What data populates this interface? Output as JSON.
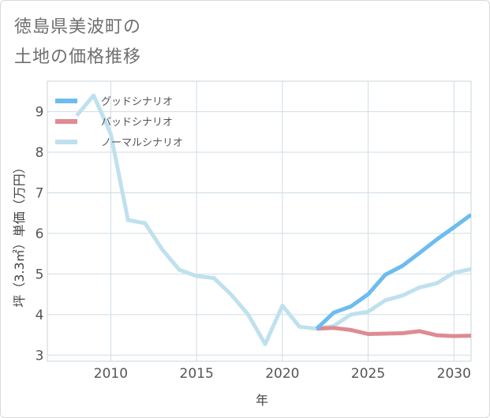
{
  "header": {
    "title_line1": "徳島県美波町の",
    "title_line2": "土地の価格推移"
  },
  "chart_data": {
    "type": "line",
    "title": "徳島県美波町の土地の価格推移",
    "xlabel": "年",
    "ylabel": "坪（3.3㎡）単価（万円）",
    "xlim": [
      2006.3,
      2031
    ],
    "ylim": [
      2.85,
      9.75
    ],
    "xticks": [
      2010,
      2015,
      2020,
      2025,
      2030
    ],
    "yticks": [
      3,
      4,
      5,
      6,
      7,
      8,
      9
    ],
    "legend_position": "top-left",
    "series": [
      {
        "name": "グッドシナリオ",
        "color": "#6cbcef",
        "x": [
          2022,
          2023,
          2024,
          2025,
          2026,
          2027,
          2028,
          2029,
          2030,
          2031
        ],
        "y": [
          3.65,
          4.05,
          4.2,
          4.5,
          4.98,
          5.2,
          5.52,
          5.85,
          6.15,
          6.46
        ]
      },
      {
        "name": "バッドシナリオ",
        "color": "#df8a93",
        "x": [
          2022,
          2023,
          2024,
          2025,
          2026,
          2027,
          2028,
          2029,
          2030,
          2031
        ],
        "y": [
          3.65,
          3.67,
          3.62,
          3.52,
          3.53,
          3.54,
          3.59,
          3.49,
          3.47,
          3.48
        ]
      },
      {
        "name": "ノーマルシナリオ",
        "color": "#bfe1ee",
        "x": [
          2008,
          2009,
          2010,
          2011,
          2012,
          2013,
          2014,
          2015,
          2016,
          2017,
          2018,
          2019,
          2020,
          2021,
          2022,
          2023,
          2024,
          2025,
          2026,
          2027,
          2028,
          2029,
          2030,
          2031
        ],
        "y": [
          8.9,
          9.4,
          8.45,
          6.33,
          6.25,
          5.6,
          5.1,
          4.95,
          4.9,
          4.5,
          4.0,
          3.27,
          4.22,
          3.7,
          3.65,
          3.72,
          4.0,
          4.07,
          4.35,
          4.47,
          4.67,
          4.77,
          5.03,
          5.12
        ]
      }
    ]
  }
}
